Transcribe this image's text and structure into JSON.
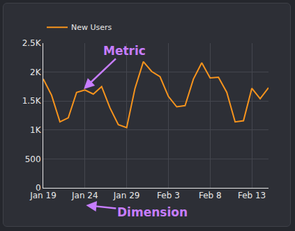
{
  "chart_data": {
    "type": "line",
    "categories": [
      "Jan 19",
      null,
      null,
      null,
      null,
      "Jan 24",
      null,
      null,
      null,
      null,
      "Jan 29",
      null,
      null,
      null,
      null,
      "Feb 3",
      null,
      null,
      null,
      null,
      "Feb 8",
      null,
      null,
      null,
      null,
      "Feb 13",
      null,
      null
    ],
    "series": [
      {
        "name": "New Users",
        "color": "#f7941d",
        "values": [
          1880,
          1600,
          1140,
          1210,
          1650,
          1690,
          1620,
          1750,
          1380,
          1090,
          1040,
          1720,
          2180,
          2010,
          1920,
          1580,
          1400,
          1420,
          1880,
          2160,
          1900,
          1910,
          1650,
          1140,
          1160,
          1720,
          1540,
          1730
        ]
      }
    ],
    "ylim": [
      0,
      2500
    ],
    "yticks": [
      0,
      500,
      {
        "value": 1000,
        "label": "1K"
      },
      {
        "value": 1500,
        "label": "1.5K"
      },
      {
        "value": 2000,
        "label": "2K"
      },
      {
        "value": 2500,
        "label": "2.5K"
      }
    ],
    "grid": true,
    "legend": "top-left",
    "annotations": [
      "Metric",
      "Dimension"
    ]
  }
}
